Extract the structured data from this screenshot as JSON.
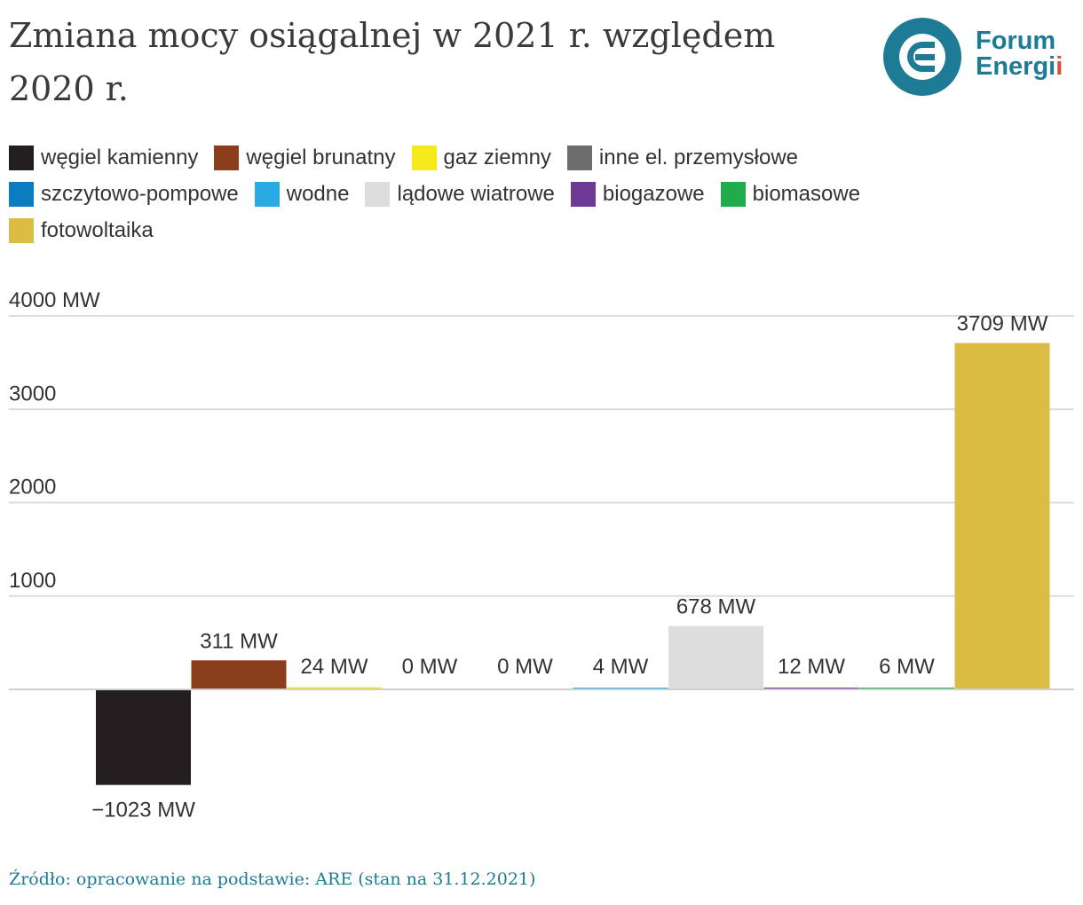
{
  "title": "Zmiana mocy osiągalnej w 2021 r. względem 2020 r.",
  "logo": {
    "line1": "Forum",
    "line2": "Energi",
    "line2_dots": "i"
  },
  "source": "Źródło: opracowanie na podstawie: ARE (stan na 31.12.2021)",
  "legend": [
    {
      "label": "węgiel kamienny",
      "color": "#231f20"
    },
    {
      "label": "węgiel brunatny",
      "color": "#8b3e1b"
    },
    {
      "label": "gaz ziemny",
      "color": "#f4ea1a"
    },
    {
      "label": "inne el. przemysłowe",
      "color": "#6d6d6d"
    },
    {
      "label": "szczytowo-pompowe",
      "color": "#0a7dc2"
    },
    {
      "label": "wodne",
      "color": "#29aae3"
    },
    {
      "label": "lądowe wiatrowe",
      "color": "#dddddd"
    },
    {
      "label": "biogazowe",
      "color": "#6e3a96"
    },
    {
      "label": "biomasowe",
      "color": "#1fad4b"
    },
    {
      "label": "fotowoltaika",
      "color": "#dbbd44"
    }
  ],
  "chart_data": {
    "type": "bar",
    "title": "Zmiana mocy osiągalnej w 2021 r. względem 2020 r.",
    "categories": [
      "węgiel kamienny",
      "węgiel brunatny",
      "gaz ziemny",
      "inne el. przemysłowe",
      "szczytowo-pompowe",
      "wodne",
      "lądowe wiatrowe",
      "biogazowe",
      "biomasowe",
      "fotowoltaika"
    ],
    "values": [
      -1023,
      311,
      24,
      0,
      0,
      4,
      678,
      12,
      6,
      3709
    ],
    "data_labels": [
      "−1023 MW",
      "311 MW",
      "24 MW",
      "0 MW",
      "0 MW",
      "4 MW",
      "678 MW",
      "12 MW",
      "6 MW",
      "3709 MW"
    ],
    "colors": [
      "#231f20",
      "#8b3e1b",
      "#f4ea1a",
      "#6d6d6d",
      "#0a7dc2",
      "#29aae3",
      "#dddddd",
      "#6e3a96",
      "#1fad4b",
      "#dbbd44"
    ],
    "yticks": [
      1000,
      2000,
      3000,
      4000
    ],
    "ytick_labels": [
      "1000",
      "2000",
      "3000",
      "4000 MW"
    ],
    "ylim": [
      -1200,
      4000
    ],
    "grid": true,
    "legend_position": "top-left",
    "xlabel": "",
    "ylabel": ""
  }
}
